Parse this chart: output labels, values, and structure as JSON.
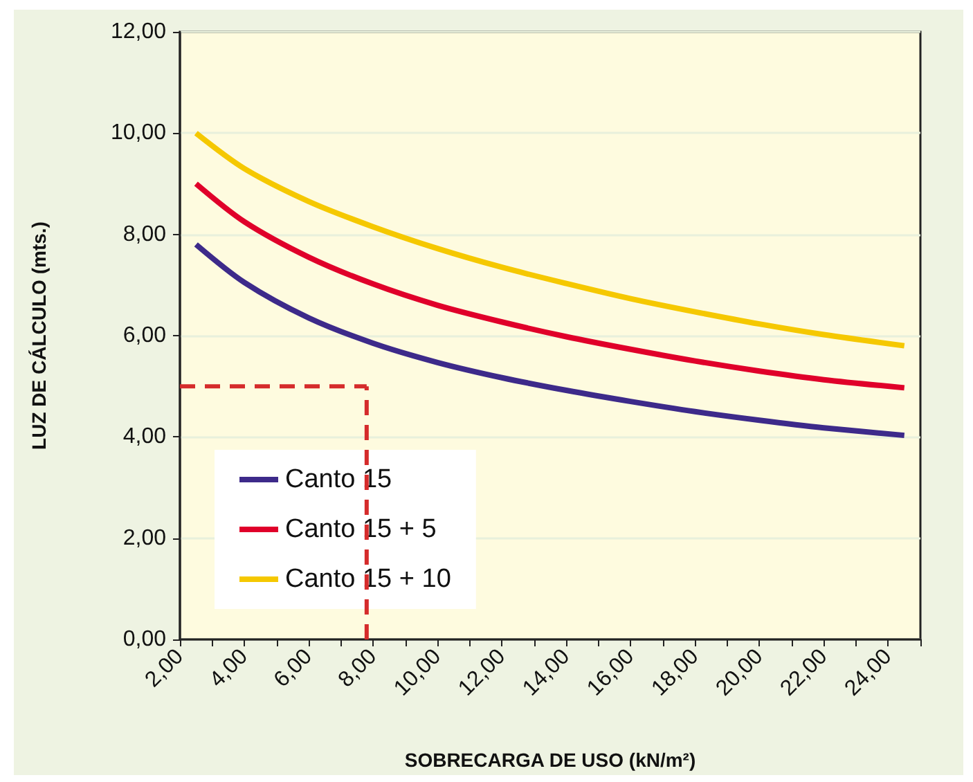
{
  "chart_data": {
    "type": "line",
    "xlabel": "SOBRECARGA DE USO (kN/m²)",
    "ylabel": "LUZ DE CÁLCULO (mts.)",
    "x": [
      2.5,
      4,
      6,
      8,
      10,
      12,
      14,
      16,
      18,
      20,
      22,
      24.5
    ],
    "series": [
      {
        "name": "Canto 15",
        "color": "#3d2a8a",
        "values": [
          7.8,
          7.05,
          6.35,
          5.85,
          5.47,
          5.17,
          4.92,
          4.7,
          4.5,
          4.33,
          4.18,
          4.03
        ]
      },
      {
        "name": "Canto 15 + 5",
        "color": "#e0002a",
        "values": [
          9.0,
          8.25,
          7.55,
          7.02,
          6.6,
          6.27,
          5.98,
          5.73,
          5.5,
          5.3,
          5.13,
          4.97
        ]
      },
      {
        "name": "Canto 15 + 10",
        "color": "#f5c800",
        "values": [
          10.0,
          9.3,
          8.65,
          8.15,
          7.72,
          7.35,
          7.03,
          6.73,
          6.47,
          6.23,
          6.02,
          5.8
        ]
      }
    ],
    "xlim": [
      2,
      25
    ],
    "xticks": [
      {
        "value": 2,
        "label": "2,00"
      },
      {
        "value": 3,
        "label": null
      },
      {
        "value": 4,
        "label": "4,00"
      },
      {
        "value": 5,
        "label": null
      },
      {
        "value": 6,
        "label": "6,00"
      },
      {
        "value": 7,
        "label": null
      },
      {
        "value": 8,
        "label": "8,00"
      },
      {
        "value": 9,
        "label": null
      },
      {
        "value": 10,
        "label": "10,00"
      },
      {
        "value": 11,
        "label": null
      },
      {
        "value": 12,
        "label": "12,00"
      },
      {
        "value": 13,
        "label": null
      },
      {
        "value": 14,
        "label": "14,00"
      },
      {
        "value": 15,
        "label": null
      },
      {
        "value": 16,
        "label": "16,00"
      },
      {
        "value": 17,
        "label": null
      },
      {
        "value": 18,
        "label": "18,00"
      },
      {
        "value": 19,
        "label": null
      },
      {
        "value": 20,
        "label": "20,00"
      },
      {
        "value": 21,
        "label": null
      },
      {
        "value": 22,
        "label": "22,00"
      },
      {
        "value": 23,
        "label": null
      },
      {
        "value": 24,
        "label": "24,00"
      },
      {
        "value": 25,
        "label": null
      }
    ],
    "ylim": [
      0,
      12
    ],
    "yticks": [
      {
        "value": 0,
        "label": "0,00"
      },
      {
        "value": 2,
        "label": "2,00"
      },
      {
        "value": 4,
        "label": "4,00"
      },
      {
        "value": 6,
        "label": "6,00"
      },
      {
        "value": 8,
        "label": "8,00"
      },
      {
        "value": 10,
        "label": "10,00"
      },
      {
        "value": 12,
        "label": "12,00"
      }
    ],
    "ref_lines": [
      {
        "axis": "y",
        "value": 5,
        "color": "#d52b2b",
        "line_style": "dashed"
      },
      {
        "axis": "x",
        "value": 7.8,
        "color": "#d52b2b",
        "line_style": "dashed"
      }
    ],
    "grid": "y",
    "legend": "bottom left",
    "marker": "none",
    "line_style": "solid"
  }
}
